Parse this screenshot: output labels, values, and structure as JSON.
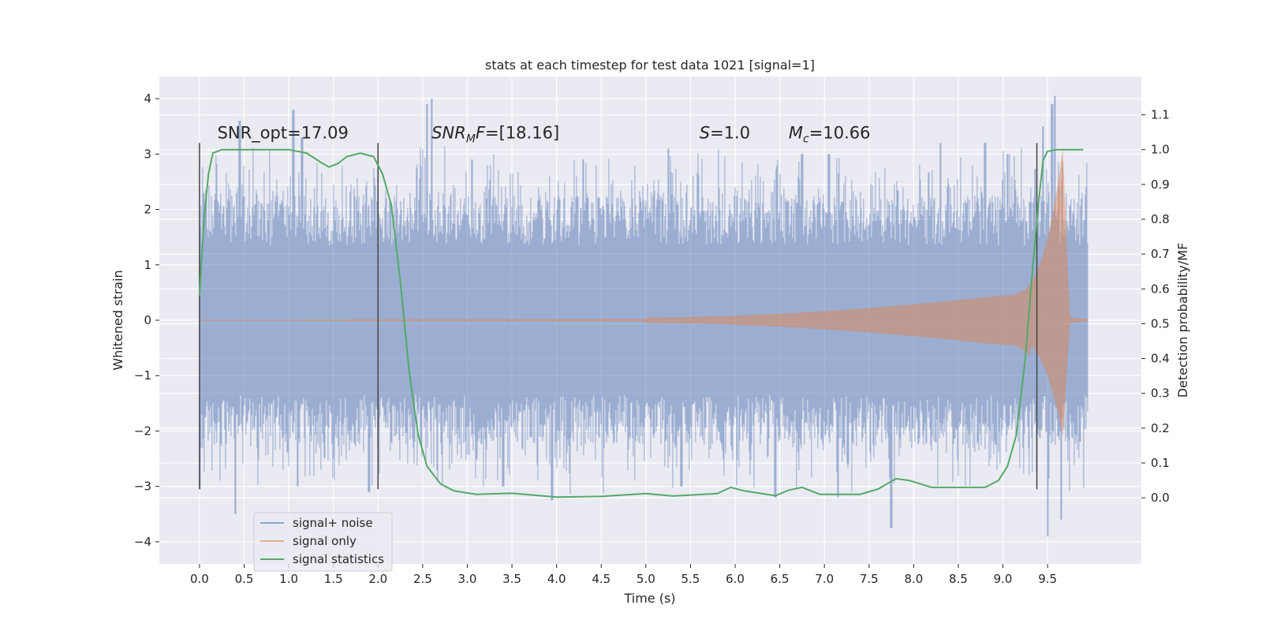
{
  "chart_data": {
    "type": "line",
    "title": "stats at each timestep for test data 1021 [signal=1]",
    "xlabel": "Time (s)",
    "ylabel": "Whitened strain",
    "y2label": "Detection probability/MF",
    "xlim": [
      -0.45,
      10.55
    ],
    "ylim": [
      -4.4,
      4.4
    ],
    "y2lim": [
      -0.19,
      1.21
    ],
    "grid": true,
    "legend_position": "lower-left",
    "x_ticks": [
      0.0,
      0.5,
      1.0,
      1.5,
      2.0,
      2.5,
      3.0,
      3.5,
      4.0,
      4.5,
      5.0,
      5.5,
      6.0,
      6.5,
      7.0,
      7.5,
      8.0,
      8.5,
      9.0,
      9.5
    ],
    "x_tick_labels": [
      "0.0",
      "0.5",
      "1.0",
      "1.5",
      "2.0",
      "2.5",
      "3.0",
      "3.5",
      "4.0",
      "4.5",
      "5.0",
      "5.5",
      "6.0",
      "6.5",
      "7.0",
      "7.5",
      "8.0",
      "8.5",
      "9.0",
      "9.5"
    ],
    "y_ticks": [
      -4,
      -3,
      -2,
      -1,
      0,
      1,
      2,
      3,
      4
    ],
    "y_tick_labels": [
      "−4",
      "−3",
      "−2",
      "−1",
      "0",
      "1",
      "2",
      "3",
      "4"
    ],
    "y2_ticks": [
      0.0,
      0.1,
      0.2,
      0.3,
      0.4,
      0.5,
      0.6,
      0.7,
      0.8,
      0.9,
      1.0,
      1.1
    ],
    "y2_tick_labels": [
      "0.0",
      "0.1",
      "0.2",
      "0.3",
      "0.4",
      "0.5",
      "0.6",
      "0.7",
      "0.8",
      "0.9",
      "1.0",
      "1.1"
    ],
    "annotations": [
      {
        "x": 0.2,
        "y": 3.2,
        "parts": [
          {
            "t": "SNR_opt=17.09",
            "s": "n"
          }
        ]
      },
      {
        "x": 2.6,
        "y": 3.2,
        "parts": [
          {
            "t": "SNR",
            "s": "i"
          },
          {
            "t": "M",
            "s": "sub"
          },
          {
            "t": "F",
            "s": "i"
          },
          {
            "t": "=[18.16]",
            "s": "n"
          }
        ]
      },
      {
        "x": 5.6,
        "y": 3.2,
        "parts": [
          {
            "t": "S",
            "s": "i"
          },
          {
            "t": "=1.0",
            "s": "n"
          }
        ]
      },
      {
        "x": 6.6,
        "y": 3.2,
        "parts": [
          {
            "t": "M",
            "s": "i"
          },
          {
            "t": "c",
            "s": "sub"
          },
          {
            "t": "=10.66",
            "s": "n"
          }
        ]
      }
    ],
    "vlines": [
      0.0,
      2.0,
      9.38
    ],
    "vline_ylim": [
      -3.05,
      3.2
    ],
    "series": [
      {
        "name": "signal+ noise",
        "axis": "left",
        "color": "#4c72b0",
        "alpha": 0.5,
        "x_range": [
          0.0,
          9.95
        ],
        "envelope": {
          "typical_low": -1.35,
          "typical_high": 1.35,
          "peaks_high": [
            [
              0.05,
              2.3
            ],
            [
              0.45,
              3.6
            ],
            [
              1.05,
              3.8
            ],
            [
              1.15,
              3.3
            ],
            [
              2.55,
              3.9
            ],
            [
              2.6,
              4.0
            ],
            [
              3.05,
              2.9
            ],
            [
              4.3,
              2.9
            ],
            [
              5.25,
              3.1
            ],
            [
              6.75,
              3.0
            ],
            [
              7.05,
              3.0
            ],
            [
              8.3,
              3.2
            ],
            [
              8.8,
              3.2
            ],
            [
              9.05,
              3.0
            ],
            [
              9.45,
              3.5
            ],
            [
              9.55,
              3.9
            ],
            [
              9.58,
              4.05
            ]
          ],
          "peaks_low": [
            [
              0.0,
              -3.05
            ],
            [
              0.4,
              -3.5
            ],
            [
              1.1,
              -3.0
            ],
            [
              1.9,
              -3.1
            ],
            [
              3.4,
              -3.0
            ],
            [
              3.95,
              -3.25
            ],
            [
              5.4,
              -3.0
            ],
            [
              6.45,
              -3.2
            ],
            [
              7.15,
              -3.2
            ],
            [
              7.75,
              -3.75
            ],
            [
              9.5,
              -3.9
            ],
            [
              9.65,
              -3.6
            ]
          ]
        }
      },
      {
        "name": "signal only",
        "axis": "left",
        "color": "#dd8452",
        "alpha": 0.5,
        "chirp": {
          "t_merger": 9.67,
          "amp_at_5s": 0.05,
          "amp_at_9s": 0.45,
          "amp_at_merger": 3.1,
          "min_at_merger": -2.1,
          "ringdown_end": 9.75
        }
      },
      {
        "name": "signal statistics",
        "axis": "right",
        "color": "#55a868",
        "points": [
          [
            0.0,
            0.58
          ],
          [
            0.05,
            0.8
          ],
          [
            0.1,
            0.93
          ],
          [
            0.15,
            0.99
          ],
          [
            0.25,
            1.0
          ],
          [
            1.0,
            1.0
          ],
          [
            1.2,
            0.99
          ],
          [
            1.35,
            0.965
          ],
          [
            1.45,
            0.95
          ],
          [
            1.55,
            0.96
          ],
          [
            1.65,
            0.98
          ],
          [
            1.8,
            0.99
          ],
          [
            1.95,
            0.98
          ],
          [
            2.05,
            0.93
          ],
          [
            2.15,
            0.84
          ],
          [
            2.25,
            0.62
          ],
          [
            2.35,
            0.36
          ],
          [
            2.45,
            0.18
          ],
          [
            2.55,
            0.09
          ],
          [
            2.7,
            0.04
          ],
          [
            2.85,
            0.02
          ],
          [
            3.1,
            0.01
          ],
          [
            3.5,
            0.013
          ],
          [
            4.0,
            0.002
          ],
          [
            4.5,
            0.004
          ],
          [
            5.0,
            0.012
          ],
          [
            5.3,
            0.005
          ],
          [
            5.8,
            0.012
          ],
          [
            5.95,
            0.03
          ],
          [
            6.1,
            0.02
          ],
          [
            6.45,
            0.006
          ],
          [
            6.6,
            0.022
          ],
          [
            6.75,
            0.03
          ],
          [
            6.95,
            0.01
          ],
          [
            7.4,
            0.01
          ],
          [
            7.6,
            0.025
          ],
          [
            7.8,
            0.055
          ],
          [
            7.95,
            0.05
          ],
          [
            8.2,
            0.03
          ],
          [
            8.5,
            0.03
          ],
          [
            8.8,
            0.03
          ],
          [
            8.95,
            0.05
          ],
          [
            9.05,
            0.09
          ],
          [
            9.15,
            0.18
          ],
          [
            9.25,
            0.4
          ],
          [
            9.33,
            0.65
          ],
          [
            9.4,
            0.85
          ],
          [
            9.45,
            0.97
          ],
          [
            9.5,
            0.995
          ],
          [
            9.6,
            1.0
          ],
          [
            9.9,
            1.0
          ]
        ]
      }
    ]
  }
}
